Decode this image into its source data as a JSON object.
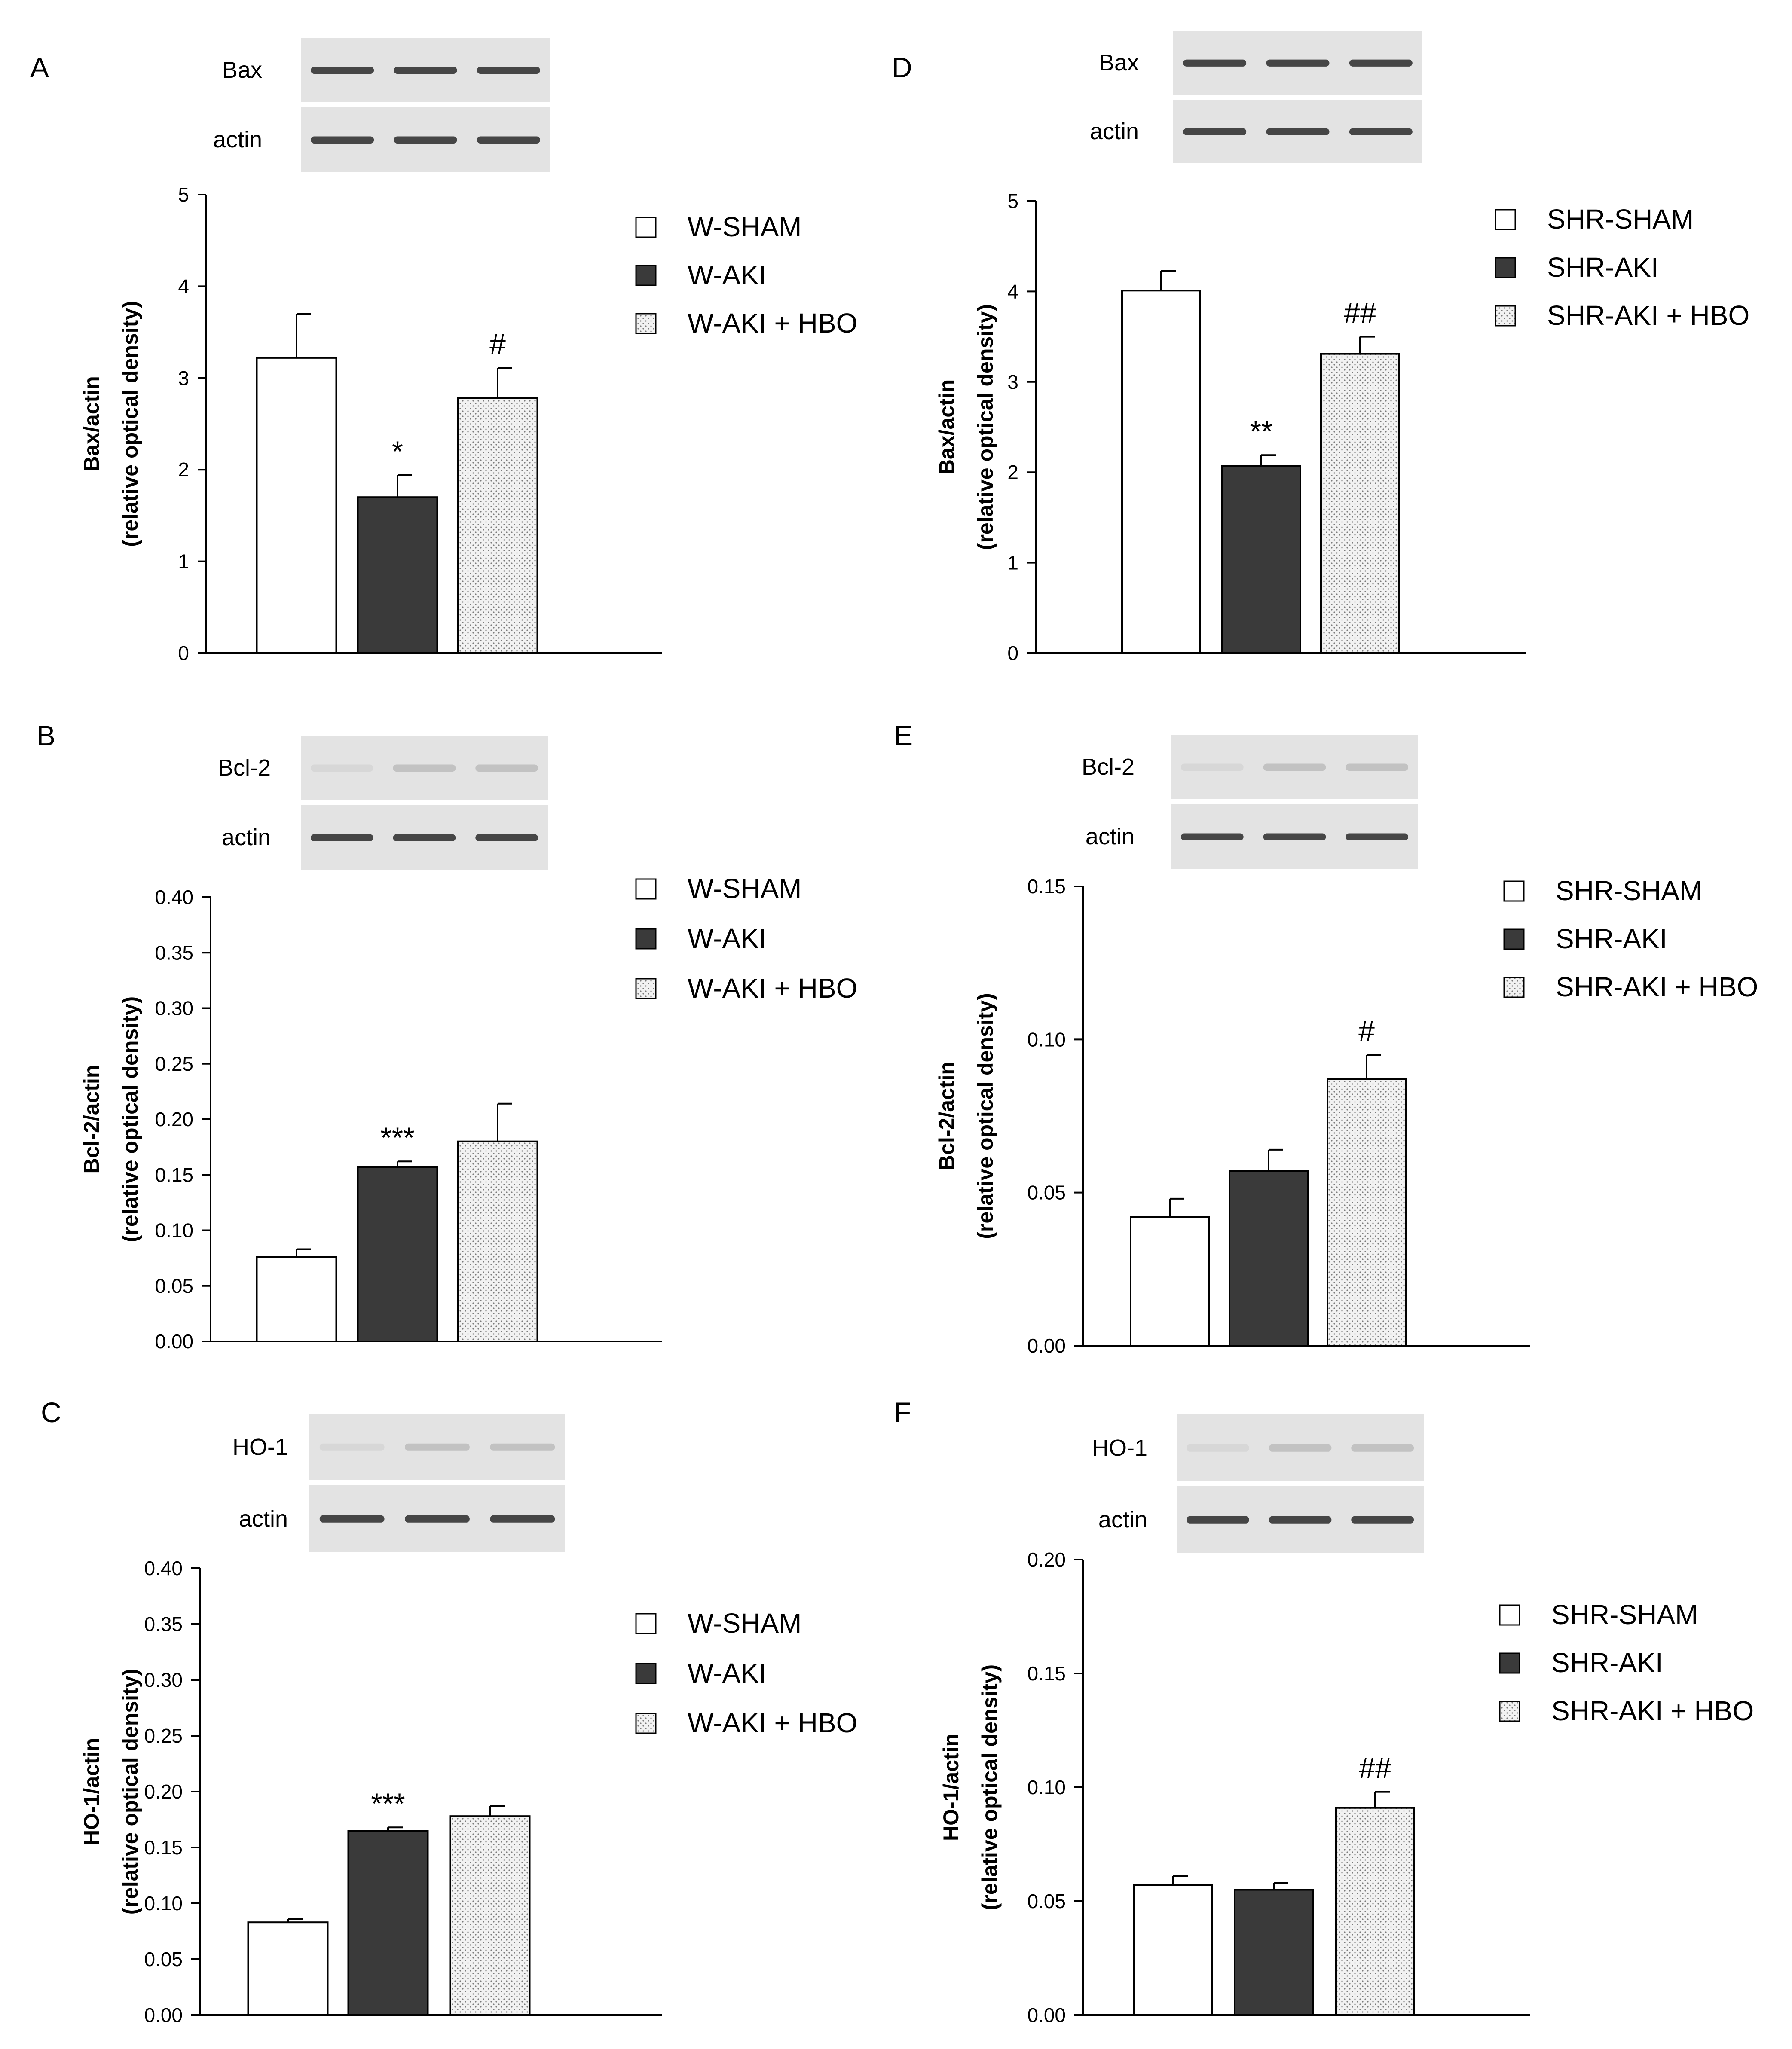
{
  "colors": {
    "bar_sham": "#ffffff",
    "bar_aki": "#3a3a3a",
    "bar_hbo": "#e8e8e8",
    "blot_bg": "#e3e3e3",
    "band": "#2a2a2a"
  },
  "chart_data": [
    {
      "type": "bar",
      "panel": "A",
      "blot_labels": [
        "Bax",
        "actin"
      ],
      "categories": [
        "W-SHAM",
        "W-AKI",
        "W-AKI + HBO"
      ],
      "values": [
        3.22,
        1.7,
        2.78
      ],
      "errors": [
        0.48,
        0.24,
        0.33
      ],
      "significance": [
        "",
        "*",
        "#"
      ],
      "ylabel": "Bax/actin (relative optical density)",
      "ylabel_lines": [
        "Bax/actin",
        "(relative optical density)"
      ],
      "ylim": [
        0,
        5
      ],
      "yticks": [
        "0",
        "1",
        "2",
        "3",
        "4",
        "5"
      ]
    },
    {
      "type": "bar",
      "panel": "B",
      "blot_labels": [
        "Bcl-2",
        "actin"
      ],
      "categories": [
        "W-SHAM",
        "W-AKI",
        "W-AKI + HBO"
      ],
      "values": [
        0.076,
        0.157,
        0.18
      ],
      "errors": [
        0.007,
        0.005,
        0.034
      ],
      "significance": [
        "",
        "***",
        ""
      ],
      "ylabel": "Bcl-2/actin (relative optical density)",
      "ylabel_lines": [
        "Bcl-2/actin",
        "(relative optical density)"
      ],
      "ylim": [
        0,
        0.4
      ],
      "yticks": [
        "0.00",
        "0.05",
        "0.10",
        "0.15",
        "0.20",
        "0.25",
        "0.30",
        "0.35",
        "0.40"
      ]
    },
    {
      "type": "bar",
      "panel": "C",
      "blot_labels": [
        "HO-1",
        "actin"
      ],
      "categories": [
        "W-SHAM",
        "W-AKI",
        "W-AKI + HBO"
      ],
      "values": [
        0.083,
        0.165,
        0.178
      ],
      "errors": [
        0.003,
        0.003,
        0.009
      ],
      "significance": [
        "",
        "***",
        ""
      ],
      "ylabel": "HO-1/actin (relative optical density)",
      "ylabel_lines": [
        "HO-1/actin",
        "(relative optical density)"
      ],
      "ylim": [
        0,
        0.4
      ],
      "yticks": [
        "0.00",
        "0.05",
        "0.10",
        "0.15",
        "0.20",
        "0.25",
        "0.30",
        "0.35",
        "0.40"
      ]
    },
    {
      "type": "bar",
      "panel": "D",
      "blot_labels": [
        "Bax",
        "actin"
      ],
      "categories": [
        "SHR-SHAM",
        "SHR-AKI",
        "SHR-AKI + HBO"
      ],
      "values": [
        4.01,
        2.07,
        3.31
      ],
      "errors": [
        0.22,
        0.12,
        0.19
      ],
      "significance": [
        "",
        "**",
        "##"
      ],
      "ylabel": "Bax/actin (relative optical density)",
      "ylabel_lines": [
        "Bax/actin",
        "(relative optical density)"
      ],
      "ylim": [
        0,
        5
      ],
      "yticks": [
        "0",
        "1",
        "2",
        "3",
        "4",
        "5"
      ]
    },
    {
      "type": "bar",
      "panel": "E",
      "blot_labels": [
        "Bcl-2",
        "actin"
      ],
      "categories": [
        "SHR-SHAM",
        "SHR-AKI",
        "SHR-AKI + HBO"
      ],
      "values": [
        0.042,
        0.057,
        0.087
      ],
      "errors": [
        0.006,
        0.007,
        0.008
      ],
      "significance": [
        "",
        "",
        "#"
      ],
      "ylabel": "Bcl-2/actin (relative optical density)",
      "ylabel_lines": [
        "Bcl-2/actin",
        "(relative optical density)"
      ],
      "ylim": [
        0,
        0.15
      ],
      "yticks": [
        "0.00",
        "0.05",
        "0.10",
        "0.15"
      ]
    },
    {
      "type": "bar",
      "panel": "F",
      "blot_labels": [
        "HO-1",
        "actin"
      ],
      "categories": [
        "SHR-SHAM",
        "SHR-AKI",
        "SHR-AKI + HBO"
      ],
      "values": [
        0.057,
        0.055,
        0.091
      ],
      "errors": [
        0.004,
        0.003,
        0.007
      ],
      "significance": [
        "",
        "",
        "##"
      ],
      "ylabel": "HO-1/actin (relative optical density)",
      "ylabel_lines": [
        "HO-1/actin",
        "(relative optical density)"
      ],
      "ylim": [
        0,
        0.2
      ],
      "yticks": [
        "0.00",
        "0.05",
        "0.10",
        "0.15",
        "0.20"
      ]
    }
  ]
}
